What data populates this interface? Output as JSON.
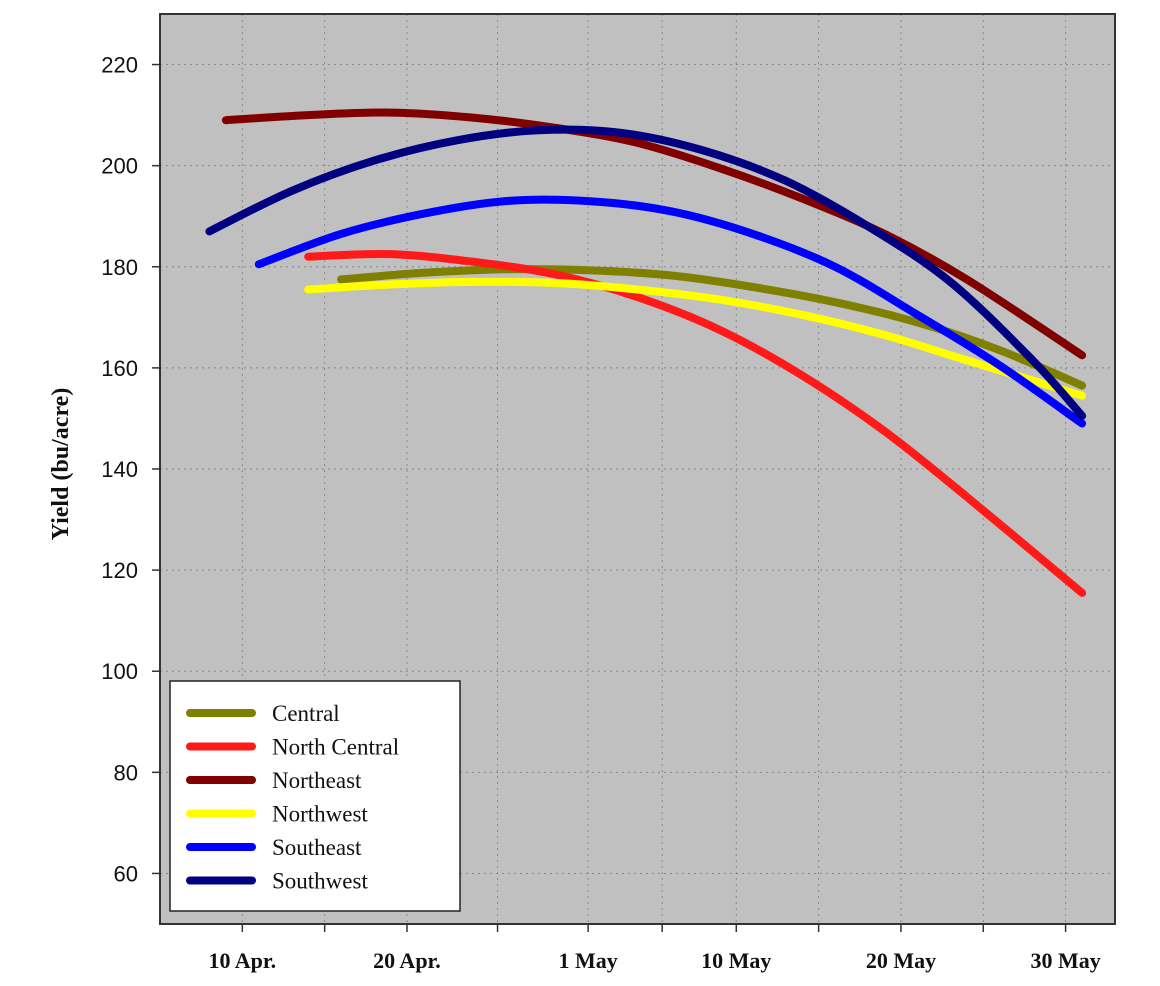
{
  "chart_data": {
    "type": "line",
    "title": "",
    "xlabel": "",
    "ylabel": "Yield (bu/acre)",
    "ylim": [
      50,
      230
    ],
    "xlim": [
      "2000-04-05",
      "2000-06-02"
    ],
    "yticks": [
      60,
      80,
      100,
      120,
      140,
      160,
      180,
      200,
      220
    ],
    "xticks": [
      {
        "label": "10 Apr.",
        "date": "2000-04-10"
      },
      {
        "label": "20 Apr.",
        "date": "2000-04-20"
      },
      {
        "label": "1 May",
        "date": "2000-05-01"
      },
      {
        "label": "10 May",
        "date": "2000-05-10"
      },
      {
        "label": "20 May",
        "date": "2000-05-20"
      },
      {
        "label": "30 May",
        "date": "2000-05-30"
      }
    ],
    "grid": true,
    "legend_position": "bottom-left",
    "background_color": "#c0c0c0",
    "series": [
      {
        "name": "Central",
        "color": "#808000",
        "x": [
          "2000-04-16",
          "2000-04-21",
          "2000-04-26",
          "2000-05-01",
          "2000-05-06",
          "2000-05-11",
          "2000-05-16",
          "2000-05-21",
          "2000-05-26",
          "2000-05-31"
        ],
        "y": [
          177.5,
          178.8,
          179.5,
          179.3,
          178.3,
          176.0,
          173.0,
          169.0,
          163.5,
          156.5
        ]
      },
      {
        "name": "North Central",
        "color": "#ff1a1a",
        "x": [
          "2000-04-14",
          "2000-04-19",
          "2000-04-24",
          "2000-04-29",
          "2000-05-04",
          "2000-05-09",
          "2000-05-14",
          "2000-05-19",
          "2000-05-24",
          "2000-05-31"
        ],
        "y": [
          182.0,
          182.5,
          181.0,
          178.5,
          174.0,
          167.5,
          158.5,
          147.5,
          134.5,
          115.5
        ]
      },
      {
        "name": "Northeast",
        "color": "#800000",
        "x": [
          "2000-04-09",
          "2000-04-14",
          "2000-04-19",
          "2000-04-24",
          "2000-04-29",
          "2000-05-04",
          "2000-05-09",
          "2000-05-14",
          "2000-05-19",
          "2000-05-24",
          "2000-05-31"
        ],
        "y": [
          209.0,
          210.0,
          210.5,
          209.5,
          207.5,
          204.5,
          199.5,
          193.5,
          186.5,
          177.5,
          162.5
        ]
      },
      {
        "name": "Northwest",
        "color": "#ffff00",
        "x": [
          "2000-04-14",
          "2000-04-19",
          "2000-04-24",
          "2000-04-29",
          "2000-05-04",
          "2000-05-09",
          "2000-05-14",
          "2000-05-19",
          "2000-05-24",
          "2000-05-31"
        ],
        "y": [
          175.5,
          176.5,
          177.0,
          176.8,
          175.5,
          173.5,
          170.5,
          166.5,
          161.5,
          154.5
        ]
      },
      {
        "name": "Southeast",
        "color": "#0000ff",
        "x": [
          "2000-04-11",
          "2000-04-16",
          "2000-04-21",
          "2000-04-26",
          "2000-05-01",
          "2000-05-06",
          "2000-05-11",
          "2000-05-16",
          "2000-05-21",
          "2000-05-26",
          "2000-05-31"
        ],
        "y": [
          180.5,
          186.5,
          190.5,
          193.0,
          193.0,
          191.0,
          186.5,
          180.0,
          170.5,
          160.5,
          149.0
        ]
      },
      {
        "name": "Southwest",
        "color": "#000080",
        "x": [
          "2000-04-08",
          "2000-04-13",
          "2000-04-18",
          "2000-04-23",
          "2000-04-28",
          "2000-05-03",
          "2000-05-08",
          "2000-05-13",
          "2000-05-18",
          "2000-05-23",
          "2000-05-28",
          "2000-05-31"
        ],
        "y": [
          187.0,
          195.0,
          201.0,
          205.0,
          207.0,
          206.5,
          203.0,
          197.0,
          188.0,
          177.0,
          161.5,
          150.5
        ]
      }
    ]
  }
}
